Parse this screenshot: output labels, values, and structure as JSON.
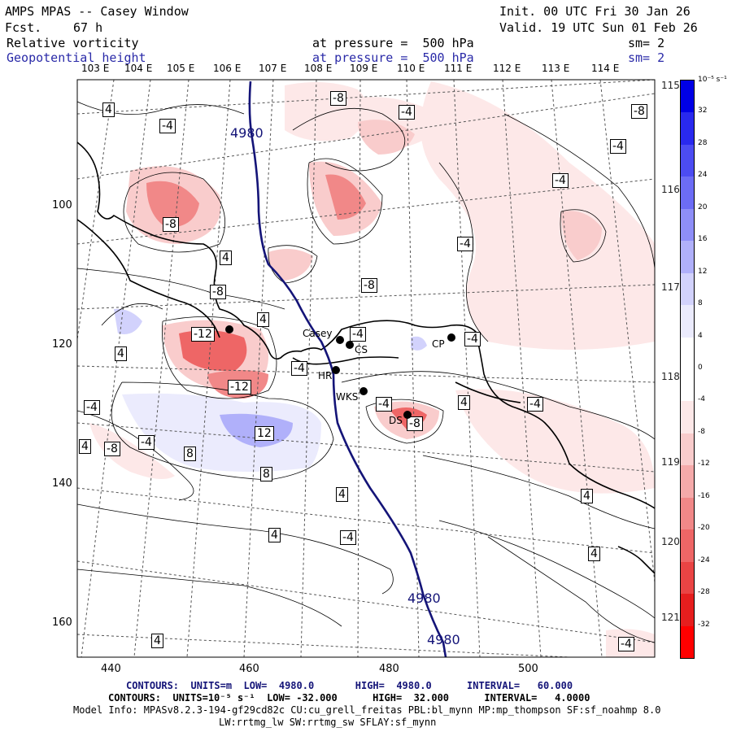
{
  "header": {
    "title": "AMPS MPAS -- Casey Window",
    "fcst_label": "Fcst.",
    "fcst_value": "67 h",
    "init": "Init. 00 UTC Fri 30 Jan 26",
    "valid": "Valid. 19 UTC Sun 01 Feb 26",
    "field1": {
      "name": "Relative vorticity",
      "pressure": "at pressure =  500 hPa",
      "sm": "sm= 2"
    },
    "field2": {
      "name": "Geopotential height",
      "pressure": "at pressure =  500 hPa",
      "sm": "sm= 2"
    }
  },
  "axes": {
    "top_lon": [
      "103 E",
      "104 E",
      "105 E",
      "106 E",
      "107 E",
      "108 E",
      "109 E",
      "110 E",
      "111 E",
      "112 E",
      "113 E",
      "114 E"
    ],
    "right_lon": [
      "115 E",
      "116 E",
      "117 E",
      "118 E",
      "119 E",
      "120 E",
      "121 E"
    ],
    "left_y": [
      "100",
      "120",
      "140",
      "160"
    ],
    "bottom_x": [
      "440",
      "460",
      "480",
      "500"
    ]
  },
  "colorbar": {
    "unit": "10⁻⁵ s⁻¹",
    "labels": [
      "32",
      "28",
      "24",
      "20",
      "16",
      "12",
      "8",
      "4",
      "0",
      "-4",
      "-8",
      "-12",
      "-16",
      "-20",
      "-24",
      "-28",
      "-32"
    ],
    "colors": [
      "#0000e6",
      "#2929ee",
      "#4c4cf2",
      "#6c6cf5",
      "#8e8ef7",
      "#b0b0fa",
      "#d2d2fc",
      "#ebebfd",
      "#ffffff",
      "#ffffff",
      "#fde8e8",
      "#f9cccc",
      "#f5aaaa",
      "#f18888",
      "#ee6666",
      "#ea4444",
      "#e61e1e",
      "#ff0000"
    ]
  },
  "contour_labels": [
    {
      "t": "4"
    },
    {
      "t": "-4"
    },
    {
      "t": "-8"
    },
    {
      "t": "-4"
    },
    {
      "t": "-8"
    },
    {
      "t": "-4"
    },
    {
      "t": "-4"
    },
    {
      "t": "-8"
    },
    {
      "t": "-4"
    },
    {
      "t": "4"
    },
    {
      "t": "-8"
    },
    {
      "t": "-8"
    },
    {
      "t": "4"
    },
    {
      "t": "4"
    },
    {
      "t": "-12"
    },
    {
      "t": "-4"
    },
    {
      "t": "-4"
    },
    {
      "t": "-12"
    },
    {
      "t": "-4"
    },
    {
      "t": "4"
    },
    {
      "t": "-4"
    },
    {
      "t": "-4"
    },
    {
      "t": "-4"
    },
    {
      "t": "-8"
    },
    {
      "t": "12"
    },
    {
      "t": "4"
    },
    {
      "t": "-8"
    },
    {
      "t": "-4"
    },
    {
      "t": "8"
    },
    {
      "t": "8"
    },
    {
      "t": "4"
    },
    {
      "t": "4"
    },
    {
      "t": "4"
    },
    {
      "t": "-4"
    },
    {
      "t": "4"
    },
    {
      "t": "4"
    },
    {
      "t": "-4"
    }
  ],
  "height_labels": [
    "4980",
    "4980",
    "4980"
  ],
  "stations": [
    "Casey",
    "CS",
    "HR",
    "WKS",
    "DS",
    "CP"
  ],
  "footer": {
    "line1": "CONTOURS:  UNITS=m  LOW=  4980.0       HIGH=  4980.0      INTERVAL=   60.000",
    "line2": "CONTOURS:  UNITS=10⁻⁵ s⁻¹  LOW= -32.000      HIGH=  32.000      INTERVAL=   4.0000",
    "line3": "Model Info: MPASv8.2.3-194-gf29cd82c CU:cu_grell_freitas PBL:bl_mynn MP:mp_thompson SF:sf_noahmp 8.0",
    "line4": "LW:rrtmg_lw SW:rrtmg_sw SFLAY:sf_mynn"
  }
}
